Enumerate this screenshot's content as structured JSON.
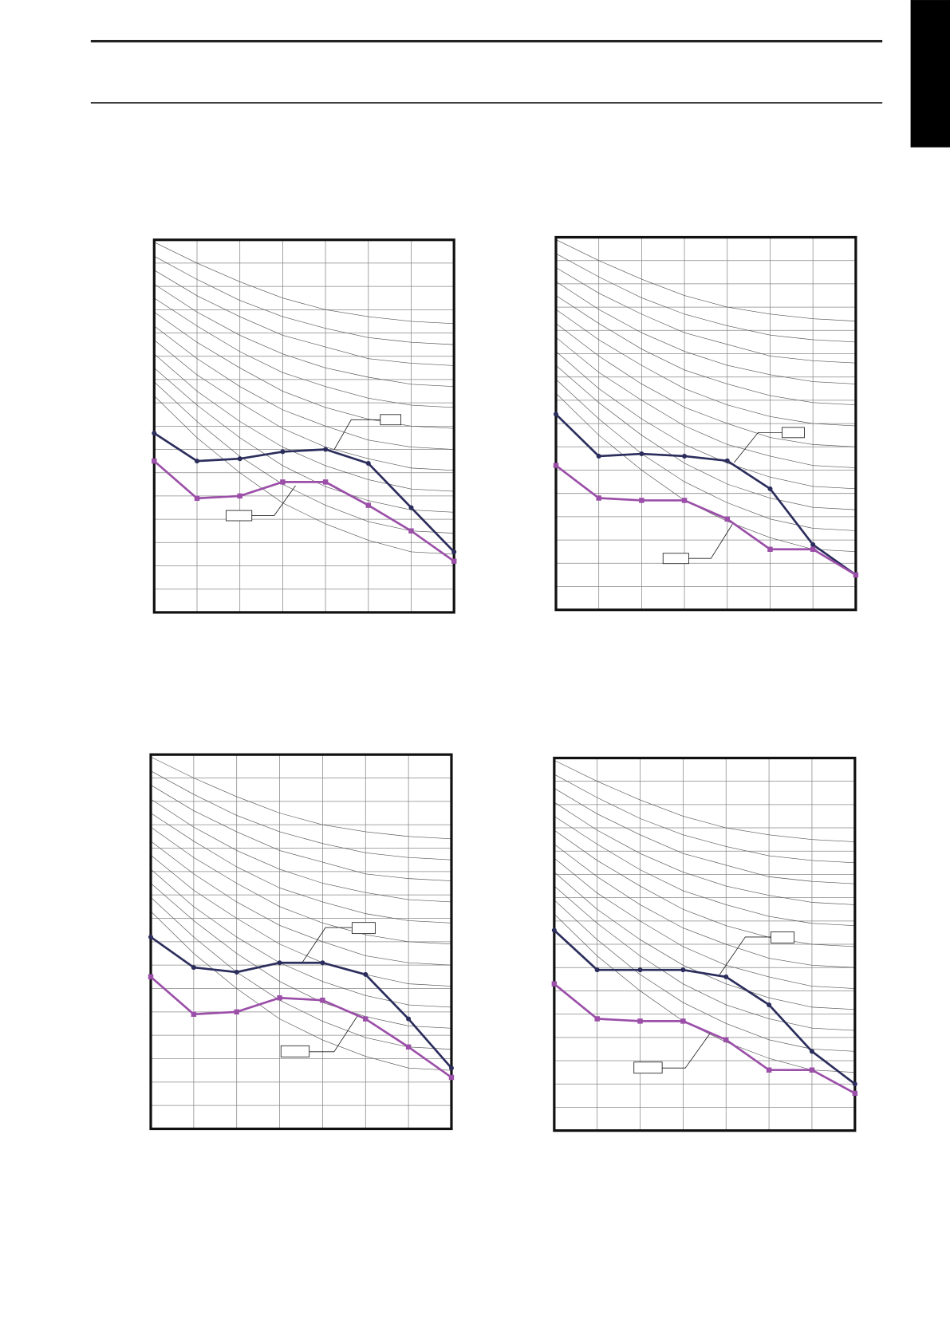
{
  "chart_data": [
    {
      "type": "line",
      "x": [
        0,
        1,
        2,
        3,
        4,
        5,
        6,
        7
      ],
      "xlim": [
        0,
        7
      ],
      "xticks": [
        0,
        1,
        2,
        3,
        4,
        5,
        6,
        7
      ],
      "ylim": [
        0,
        16
      ],
      "yticks": [
        0,
        1,
        2,
        3,
        4,
        5,
        6,
        7,
        8,
        9,
        10,
        11,
        12,
        13,
        14,
        15,
        16
      ],
      "grid": true,
      "series": [
        {
          "color": "#2b2d5c",
          "marker": "circle",
          "values": [
            7.7,
            6.5,
            6.6,
            6.9,
            7.0,
            6.4,
            4.5,
            2.6
          ]
        },
        {
          "color": "#9b4fa8",
          "marker": "square",
          "values": [
            6.5,
            4.9,
            5.0,
            5.6,
            5.6,
            4.6,
            3.5,
            2.2
          ]
        }
      ],
      "curve_color": "#555555",
      "curves": [
        [
          15.9,
          15.0,
          14.2,
          13.5,
          13.0,
          12.7,
          12.5,
          12.4
        ],
        [
          15.3,
          14.3,
          13.4,
          12.7,
          12.2,
          11.8,
          11.6,
          11.5
        ],
        [
          14.7,
          13.6,
          12.7,
          11.9,
          11.4,
          10.9,
          10.7,
          10.6
        ],
        [
          14.1,
          12.9,
          11.9,
          11.1,
          10.5,
          10.1,
          9.8,
          9.7
        ],
        [
          13.5,
          12.3,
          11.2,
          10.3,
          9.7,
          9.2,
          8.9,
          8.8
        ],
        [
          12.9,
          11.6,
          10.5,
          9.5,
          8.8,
          8.3,
          8.0,
          7.9
        ],
        [
          12.3,
          10.9,
          9.7,
          8.7,
          8.0,
          7.4,
          7.1,
          7.0
        ],
        [
          11.7,
          10.2,
          9.0,
          7.9,
          7.1,
          6.6,
          6.2,
          6.1
        ],
        [
          11.1,
          9.5,
          8.2,
          7.1,
          6.3,
          5.7,
          5.3,
          5.2
        ],
        [
          10.5,
          8.9,
          7.5,
          6.3,
          5.4,
          4.8,
          4.4,
          4.3
        ],
        [
          9.9,
          8.2,
          6.7,
          5.5,
          4.6,
          3.9,
          3.5,
          3.4
        ],
        [
          9.3,
          7.5,
          6.0,
          4.7,
          3.8,
          3.1,
          2.6,
          2.5
        ]
      ]
    },
    {
      "type": "line",
      "x": [
        0,
        1,
        2,
        3,
        4,
        5,
        6,
        7
      ],
      "xlim": [
        0,
        7
      ],
      "xticks": [
        0,
        1,
        2,
        3,
        4,
        5,
        6,
        7
      ],
      "ylim": [
        0,
        16
      ],
      "yticks": [
        0,
        1,
        2,
        3,
        4,
        5,
        6,
        7,
        8,
        9,
        10,
        11,
        12,
        13,
        14,
        15,
        16
      ],
      "grid": true,
      "series": [
        {
          "color": "#2b2d5c",
          "marker": "circle",
          "values": [
            8.4,
            6.6,
            6.7,
            6.6,
            6.4,
            5.2,
            2.8,
            1.5
          ]
        },
        {
          "color": "#9b4fa8",
          "marker": "square",
          "values": [
            6.2,
            4.8,
            4.7,
            4.7,
            3.9,
            2.6,
            2.6,
            1.5
          ]
        }
      ],
      "curve_color": "#555555",
      "curves": [
        [
          15.9,
          15.0,
          14.2,
          13.5,
          13.0,
          12.7,
          12.5,
          12.4
        ],
        [
          15.3,
          14.3,
          13.4,
          12.7,
          12.2,
          11.8,
          11.6,
          11.5
        ],
        [
          14.7,
          13.6,
          12.7,
          11.9,
          11.4,
          10.9,
          10.7,
          10.6
        ],
        [
          14.1,
          12.9,
          11.9,
          11.1,
          10.5,
          10.1,
          9.8,
          9.7
        ],
        [
          13.5,
          12.3,
          11.2,
          10.3,
          9.7,
          9.2,
          8.9,
          8.8
        ],
        [
          12.9,
          11.6,
          10.5,
          9.5,
          8.8,
          8.3,
          8.0,
          7.9
        ],
        [
          12.3,
          10.9,
          9.7,
          8.7,
          8.0,
          7.4,
          7.1,
          7.0
        ],
        [
          11.7,
          10.2,
          9.0,
          7.9,
          7.1,
          6.6,
          6.2,
          6.1
        ],
        [
          11.1,
          9.5,
          8.2,
          7.1,
          6.3,
          5.7,
          5.3,
          5.2
        ],
        [
          10.5,
          8.9,
          7.5,
          6.3,
          5.4,
          4.8,
          4.4,
          4.3
        ],
        [
          9.9,
          8.2,
          6.7,
          5.5,
          4.6,
          3.9,
          3.5,
          3.4
        ],
        [
          9.3,
          7.5,
          6.0,
          4.7,
          3.8,
          3.1,
          2.6,
          2.5
        ]
      ]
    },
    {
      "type": "line",
      "x": [
        0,
        1,
        2,
        3,
        4,
        5,
        6,
        7
      ],
      "xlim": [
        0,
        7
      ],
      "xticks": [
        0,
        1,
        2,
        3,
        4,
        5,
        6,
        7
      ],
      "ylim": [
        0,
        16
      ],
      "yticks": [
        0,
        1,
        2,
        3,
        4,
        5,
        6,
        7,
        8,
        9,
        10,
        11,
        12,
        13,
        14,
        15,
        16
      ],
      "grid": true,
      "series": [
        {
          "color": "#2b2d5c",
          "marker": "circle",
          "values": [
            8.2,
            6.9,
            6.7,
            7.1,
            7.1,
            6.6,
            4.7,
            2.6
          ]
        },
        {
          "color": "#9b4fa8",
          "marker": "square",
          "values": [
            6.5,
            4.9,
            5.0,
            5.6,
            5.5,
            4.7,
            3.5,
            2.2
          ]
        }
      ],
      "curve_color": "#555555",
      "curves": [
        [
          15.9,
          15.0,
          14.2,
          13.5,
          13.0,
          12.7,
          12.5,
          12.4
        ],
        [
          15.3,
          14.3,
          13.4,
          12.7,
          12.2,
          11.8,
          11.6,
          11.5
        ],
        [
          14.7,
          13.6,
          12.7,
          11.9,
          11.4,
          10.9,
          10.7,
          10.6
        ],
        [
          14.1,
          12.9,
          11.9,
          11.1,
          10.5,
          10.1,
          9.8,
          9.7
        ],
        [
          13.5,
          12.3,
          11.2,
          10.3,
          9.7,
          9.2,
          8.9,
          8.8
        ],
        [
          12.9,
          11.6,
          10.5,
          9.5,
          8.8,
          8.3,
          8.0,
          7.9
        ],
        [
          12.3,
          10.9,
          9.7,
          8.7,
          8.0,
          7.4,
          7.1,
          7.0
        ],
        [
          11.7,
          10.2,
          9.0,
          7.9,
          7.1,
          6.6,
          6.2,
          6.1
        ],
        [
          11.1,
          9.5,
          8.2,
          7.1,
          6.3,
          5.7,
          5.3,
          5.2
        ],
        [
          10.5,
          8.9,
          7.5,
          6.3,
          5.4,
          4.8,
          4.4,
          4.3
        ],
        [
          9.9,
          8.2,
          6.7,
          5.5,
          4.6,
          3.9,
          3.5,
          3.4
        ],
        [
          9.3,
          7.5,
          6.0,
          4.7,
          3.8,
          3.1,
          2.6,
          2.5
        ]
      ]
    },
    {
      "type": "line",
      "x": [
        0,
        1,
        2,
        3,
        4,
        5,
        6,
        7
      ],
      "xlim": [
        0,
        7
      ],
      "xticks": [
        0,
        1,
        2,
        3,
        4,
        5,
        6,
        7
      ],
      "ylim": [
        0,
        16
      ],
      "yticks": [
        0,
        1,
        2,
        3,
        4,
        5,
        6,
        7,
        8,
        9,
        10,
        11,
        12,
        13,
        14,
        15,
        16
      ],
      "grid": true,
      "series": [
        {
          "color": "#2b2d5c",
          "marker": "circle",
          "values": [
            8.6,
            6.9,
            6.9,
            6.9,
            6.6,
            5.4,
            3.4,
            2.0
          ]
        },
        {
          "color": "#9b4fa8",
          "marker": "square",
          "values": [
            6.3,
            4.8,
            4.7,
            4.7,
            3.9,
            2.6,
            2.6,
            1.6
          ]
        }
      ],
      "curve_color": "#555555",
      "curves": [
        [
          15.9,
          15.0,
          14.2,
          13.5,
          13.0,
          12.7,
          12.5,
          12.4
        ],
        [
          15.3,
          14.3,
          13.4,
          12.7,
          12.2,
          11.8,
          11.6,
          11.5
        ],
        [
          14.7,
          13.6,
          12.7,
          11.9,
          11.4,
          10.9,
          10.7,
          10.6
        ],
        [
          14.1,
          12.9,
          11.9,
          11.1,
          10.5,
          10.1,
          9.8,
          9.7
        ],
        [
          13.5,
          12.3,
          11.2,
          10.3,
          9.7,
          9.2,
          8.9,
          8.8
        ],
        [
          12.9,
          11.6,
          10.5,
          9.5,
          8.8,
          8.3,
          8.0,
          7.9
        ],
        [
          12.3,
          10.9,
          9.7,
          8.7,
          8.0,
          7.4,
          7.1,
          7.0
        ],
        [
          11.7,
          10.2,
          9.0,
          7.9,
          7.1,
          6.6,
          6.2,
          6.1
        ],
        [
          11.1,
          9.5,
          8.2,
          7.1,
          6.3,
          5.7,
          5.3,
          5.2
        ],
        [
          10.5,
          8.9,
          7.5,
          6.3,
          5.4,
          4.8,
          4.4,
          4.3
        ],
        [
          9.9,
          8.2,
          6.7,
          5.5,
          4.6,
          3.9,
          3.5,
          3.4
        ],
        [
          9.3,
          7.5,
          6.0,
          4.7,
          3.8,
          3.1,
          2.6,
          2.5
        ]
      ]
    }
  ]
}
